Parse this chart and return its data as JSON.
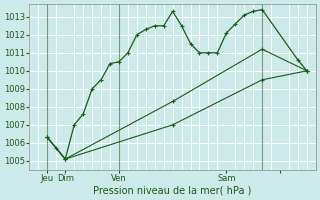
{
  "title": "Pression niveau de la mer( hPa )",
  "bg_color": "#cceaea",
  "grid_color": "#ffffff",
  "line_color": "#1a5c1a",
  "ylim": [
    1004.5,
    1013.7
  ],
  "yticks": [
    1005,
    1006,
    1007,
    1008,
    1009,
    1010,
    1011,
    1012,
    1013
  ],
  "xlim": [
    0,
    32
  ],
  "vline_color": "#7a9a7a",
  "vline_positions": [
    2,
    10,
    26
  ],
  "vline_jeu": 2,
  "xtick_positions": [
    2,
    4,
    10,
    22,
    28
  ],
  "xtick_labels": [
    "Jeu",
    "Dim",
    "Ven",
    "Sam",
    ""
  ],
  "series1_x": [
    2,
    3,
    4,
    5,
    6,
    7,
    8,
    9,
    10,
    11,
    12,
    13,
    14,
    15,
    16,
    17,
    18,
    19,
    20,
    21,
    22,
    23,
    24,
    25,
    26,
    30,
    31
  ],
  "series1_y": [
    1006.3,
    1005.7,
    1005.1,
    1007.0,
    1007.6,
    1009.0,
    1009.5,
    1010.4,
    1010.5,
    1011.0,
    1012.0,
    1012.3,
    1012.5,
    1012.5,
    1013.3,
    1012.5,
    1011.5,
    1011.0,
    1011.0,
    1011.0,
    1012.1,
    1012.6,
    1013.1,
    1013.3,
    1013.4,
    1010.6,
    1010.0
  ],
  "series2_x": [
    2,
    4,
    16,
    26,
    31
  ],
  "series2_y": [
    1006.3,
    1005.1,
    1008.3,
    1011.2,
    1010.0
  ],
  "series3_x": [
    2,
    4,
    16,
    26,
    31
  ],
  "series3_y": [
    1006.3,
    1005.1,
    1007.0,
    1009.5,
    1010.0
  ]
}
